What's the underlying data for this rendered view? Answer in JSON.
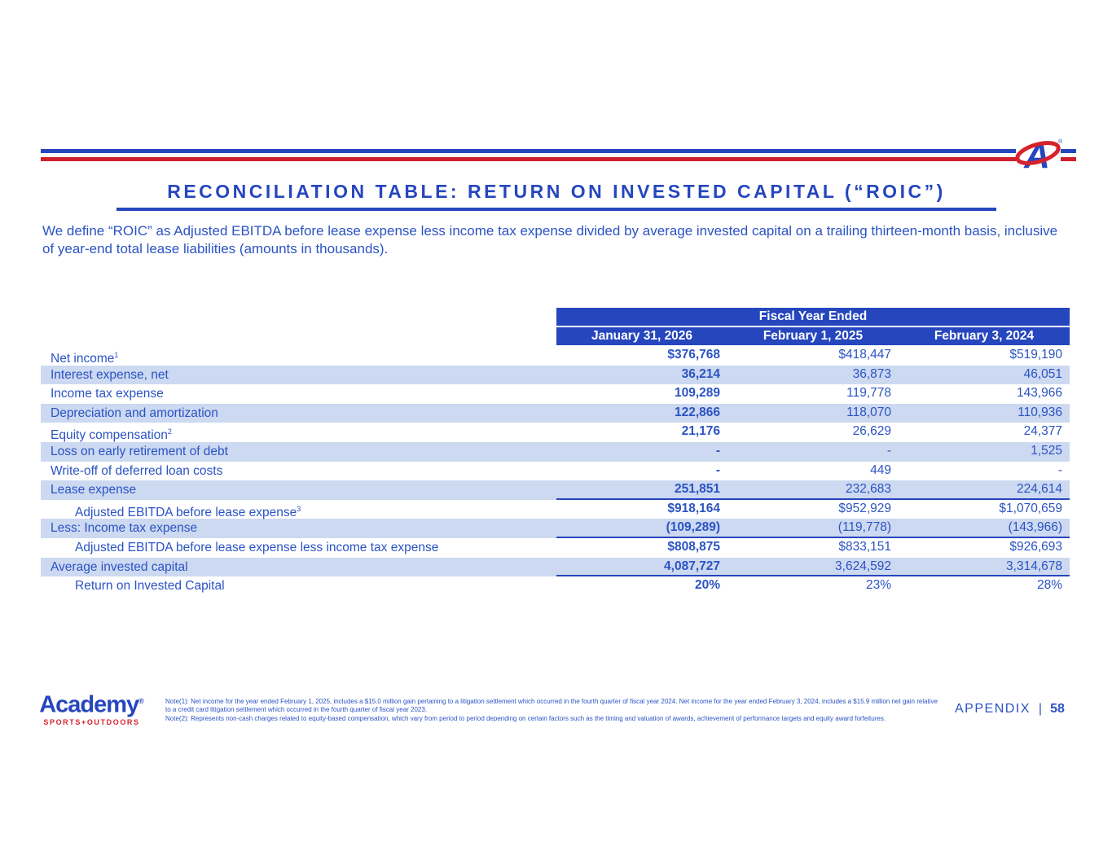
{
  "colors": {
    "accent_blue": "#2646BE",
    "text_blue": "#2B53C4",
    "row_stripe": "#CCD9F1",
    "accent_red": "#CE202F",
    "logo_red": "#D6222B"
  },
  "header_logo": {
    "letter": "A",
    "registered": "®"
  },
  "slide": {
    "title": "RECONCILIATION TABLE: RETURN ON INVESTED CAPITAL (“ROIC”)",
    "description": "We define “ROIC” as Adjusted EBITDA before lease expense less income tax expense divided by average invested capital on a trailing thirteen-month basis, inclusive of year-end total lease liabilities (amounts in thousands)."
  },
  "table": {
    "group_header": "Fiscal Year Ended",
    "columns": [
      "January 31, 2026",
      "February 1, 2025",
      "February 3, 2024"
    ],
    "rows": [
      {
        "label": "Net income",
        "sup": "1",
        "indent": false,
        "shaded": false,
        "rule": false,
        "values": [
          "$376,768",
          "$418,447",
          "$519,190"
        ]
      },
      {
        "label": "Interest expense, net",
        "sup": "",
        "indent": false,
        "shaded": true,
        "rule": false,
        "values": [
          "36,214",
          "36,873",
          "46,051"
        ]
      },
      {
        "label": "Income tax expense",
        "sup": "",
        "indent": false,
        "shaded": false,
        "rule": false,
        "values": [
          "109,289",
          "119,778",
          "143,966"
        ]
      },
      {
        "label": "Depreciation and amortization",
        "sup": "",
        "indent": false,
        "shaded": true,
        "rule": false,
        "values": [
          "122,866",
          "118,070",
          "110,936"
        ]
      },
      {
        "label": "Equity compensation",
        "sup": "2",
        "indent": false,
        "shaded": false,
        "rule": false,
        "values": [
          "21,176",
          "26,629",
          "24,377"
        ]
      },
      {
        "label": "Loss on early retirement of debt",
        "sup": "",
        "indent": false,
        "shaded": true,
        "rule": false,
        "values": [
          "-",
          "-",
          "1,525"
        ]
      },
      {
        "label": "Write-off of deferred loan costs",
        "sup": "",
        "indent": false,
        "shaded": false,
        "rule": false,
        "values": [
          "-",
          "449",
          "-"
        ]
      },
      {
        "label": "Lease expense",
        "sup": "",
        "indent": false,
        "shaded": true,
        "rule": true,
        "values": [
          "251,851",
          "232,683",
          "224,614"
        ]
      },
      {
        "label": "Adjusted EBITDA before lease expense",
        "sup": "3",
        "indent": true,
        "shaded": false,
        "rule": false,
        "values": [
          "$918,164",
          "$952,929",
          "$1,070,659"
        ]
      },
      {
        "label": "Less: Income tax expense",
        "sup": "",
        "indent": false,
        "shaded": true,
        "rule": true,
        "values": [
          "(109,289)",
          "(119,778)",
          "(143,966)"
        ]
      },
      {
        "label": "Adjusted EBITDA before lease expense less income tax expense",
        "sup": "",
        "indent": true,
        "shaded": false,
        "rule": false,
        "values": [
          "$808,875",
          "$833,151",
          "$926,693"
        ]
      },
      {
        "label": "Average invested capital",
        "sup": "",
        "indent": false,
        "shaded": true,
        "rule": true,
        "values": [
          "4,087,727",
          "3,624,592",
          "3,314,678"
        ]
      },
      {
        "label": "Return on Invested Capital",
        "sup": "",
        "indent": true,
        "shaded": false,
        "rule": false,
        "values": [
          "20%",
          "23%",
          "28%"
        ]
      }
    ]
  },
  "footer": {
    "brand_name": "Academy",
    "brand_mark": "®",
    "brand_tagline": "SPORTS+OUTDOORS",
    "notes": [
      "Note(1): Net income for the year ended February 1, 2025, includes a $15.0 million gain pertaining to a litigation settlement which occurred in the fourth quarter of fiscal year 2024. Net income for the year ended February 3, 2024, includes a $15.9 million net gain relative to a credit card litigation settlement which occurred in the fourth quarter of fiscal year 2023.",
      "Note(2): Represents non-cash charges related to equity-based compensation, which vary from period to period depending on certain factors such as the timing and valuation of awards, achievement of performance targets and equity award forfeitures."
    ],
    "appendix_label": "APPENDIX",
    "page_separator": "|",
    "page_number": "58"
  }
}
